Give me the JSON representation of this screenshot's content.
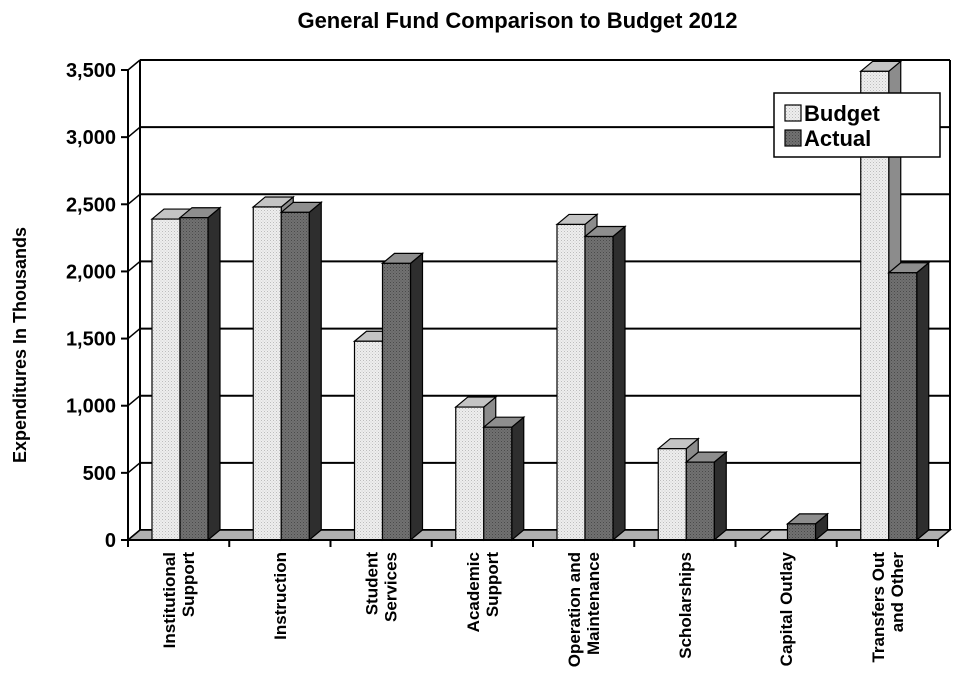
{
  "chart_data": {
    "type": "bar",
    "title": "General Fund Comparison to Budget 2012",
    "ylabel": "Expenditures In Thousands",
    "xlabel": "",
    "categories": [
      [
        "Institutional",
        "Support"
      ],
      [
        "Instruction"
      ],
      [
        "Student",
        "Services"
      ],
      [
        "Academic",
        "Support"
      ],
      [
        "Operation and",
        "Maintenance"
      ],
      [
        "Scholarships"
      ],
      [
        "Capital Outlay"
      ],
      [
        "Transfers Out",
        "and Other"
      ]
    ],
    "series": [
      {
        "name": "Budget",
        "values": [
          2390,
          2480,
          1480,
          990,
          2350,
          680,
          0,
          3490
        ]
      },
      {
        "name": "Actual",
        "values": [
          2400,
          2440,
          2060,
          840,
          2260,
          580,
          120,
          1990
        ]
      }
    ],
    "ylim": [
      0,
      3500
    ],
    "yticks": [
      "0",
      "500",
      "1,000",
      "1,500",
      "2,000",
      "2,500",
      "3,000",
      "3,500"
    ],
    "grid": true,
    "legend": "top-right",
    "colors": {
      "budget_front": "#e6e6e6",
      "budget_top": "#c4c4c4",
      "budget_side": "#8c8c8c",
      "actual_front": "#6e6e6e",
      "actual_top": "#8e8e8e",
      "actual_side": "#2e2e2e",
      "floor": "#b0b0b0"
    }
  }
}
